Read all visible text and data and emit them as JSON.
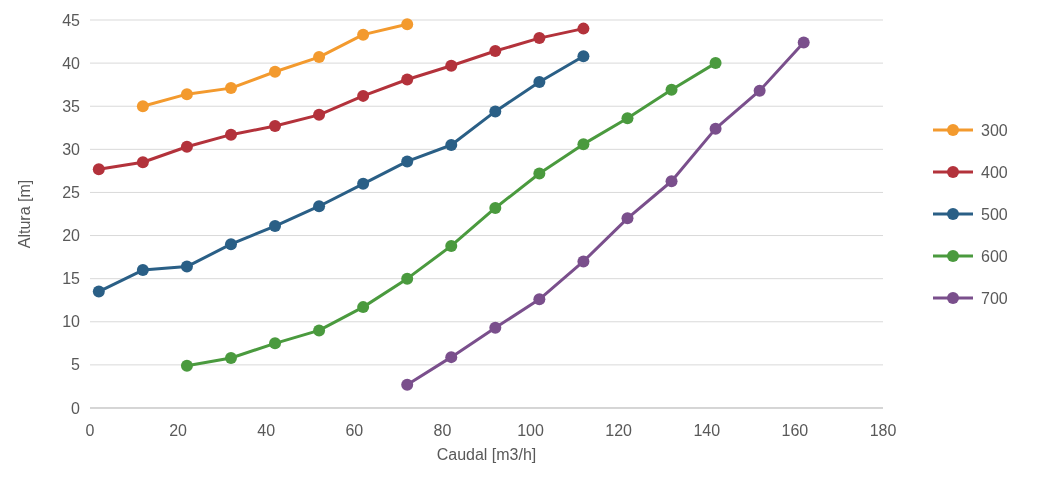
{
  "chart_data": {
    "type": "line",
    "xlabel": "Caudal [m3/h]",
    "ylabel": "Altura [m]",
    "xlim": [
      0,
      180
    ],
    "xticks": [
      0,
      20,
      40,
      60,
      80,
      100,
      120,
      140,
      160,
      180
    ],
    "ylim": [
      0,
      45
    ],
    "yticks": [
      0,
      5,
      10,
      15,
      20,
      25,
      30,
      35,
      40,
      45
    ],
    "grid": "y",
    "legend": "right",
    "marker": "circle",
    "series": [
      {
        "name": "300",
        "color": "#f39a2e",
        "x": [
          12,
          22,
          32,
          42,
          52,
          62,
          72
        ],
        "values": [
          35,
          36.4,
          37.1,
          39,
          40.7,
          43.3,
          44.5
        ]
      },
      {
        "name": "400",
        "color": "#b3323b",
        "x": [
          2,
          12,
          22,
          32,
          42,
          52,
          62,
          72,
          82,
          92,
          102,
          112
        ],
        "values": [
          27.7,
          28.5,
          30.3,
          31.7,
          32.7,
          34,
          36.2,
          38.1,
          39.7,
          41.4,
          42.9,
          44
        ]
      },
      {
        "name": "500",
        "color": "#2a5f86",
        "x": [
          2,
          12,
          22,
          32,
          42,
          52,
          62,
          72,
          82,
          92,
          102,
          112
        ],
        "values": [
          13.5,
          16,
          16.4,
          19,
          21.1,
          23.4,
          26,
          28.6,
          30.5,
          34.4,
          37.8,
          40.8
        ]
      },
      {
        "name": "600",
        "color": "#4a9a3e",
        "x": [
          22,
          32,
          42,
          52,
          62,
          72,
          82,
          92,
          102,
          112,
          122,
          132,
          142
        ],
        "values": [
          4.9,
          5.8,
          7.5,
          9,
          11.7,
          15,
          18.8,
          23.2,
          27.2,
          30.6,
          33.6,
          36.9,
          40
        ]
      },
      {
        "name": "700",
        "color": "#7a4f8c",
        "x": [
          72,
          82,
          92,
          102,
          112,
          122,
          132,
          142,
          152,
          162
        ],
        "values": [
          2.7,
          5.9,
          9.3,
          12.6,
          17,
          22,
          26.3,
          32.4,
          36.8,
          42.4
        ]
      }
    ]
  }
}
